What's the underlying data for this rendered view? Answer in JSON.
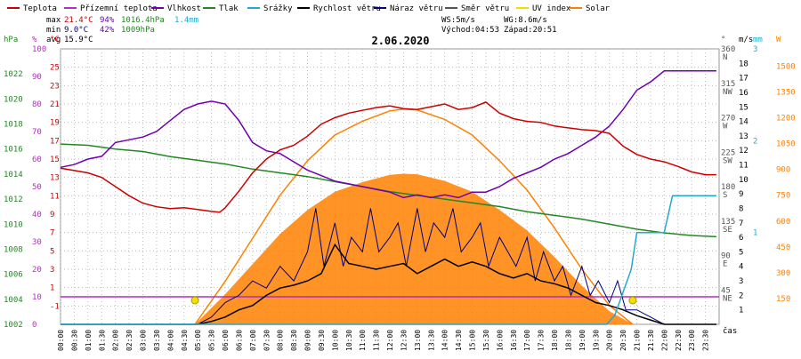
{
  "legend": [
    {
      "label": "Teplota",
      "color": "#cc0000"
    },
    {
      "label": "Přízemní teplota",
      "color": "#b030c0"
    },
    {
      "label": "Vlhkost",
      "color": "#7000b0"
    },
    {
      "label": "Tlak",
      "color": "#228822"
    },
    {
      "label": "Srážky",
      "color": "#22aacc"
    },
    {
      "label": "Rychlost větru",
      "color": "#000000"
    },
    {
      "label": "Náraz větru",
      "color": "#000080"
    },
    {
      "label": "Směr větru",
      "color": "#555555"
    },
    {
      "label": "UV index",
      "color": "#f0e000"
    },
    {
      "label": "Solar",
      "color": "#ff8000"
    }
  ],
  "stats": {
    "max_label": "max",
    "max_temp": "21.4°C",
    "max_hum": "94%",
    "max_press": "1016.4hPa",
    "max_rain": "1.4mm",
    "min_label": "min",
    "min_temp": "9.0°C",
    "min_hum": "42%",
    "min_press": "1009hPa",
    "avg_label": "avg",
    "avg_temp": "15.9°C"
  },
  "wind_info": {
    "ws": "WS:5m/s",
    "wg": "WG:8.6m/s",
    "sunrise": "Východ:04:53",
    "sunset": "Západ:20:51"
  },
  "title": "2.06.2020",
  "chart_data": {
    "type": "line",
    "title": "2.06.2020",
    "x_ticks": [
      "00:00",
      "00:30",
      "01:00",
      "01:30",
      "02:00",
      "02:30",
      "03:00",
      "03:30",
      "04:00",
      "04:30",
      "05:00",
      "05:30",
      "06:00",
      "06:30",
      "07:00",
      "07:30",
      "08:00",
      "08:30",
      "09:00",
      "09:30",
      "10:00",
      "10:30",
      "11:00",
      "11:30",
      "12:00",
      "12:30",
      "13:00",
      "13:30",
      "14:00",
      "14:30",
      "15:00",
      "15:30",
      "16:00",
      "16:30",
      "17:00",
      "17:30",
      "18:00",
      "18:30",
      "19:00",
      "19:30",
      "20:00",
      "20:30",
      "21:00",
      "21:30",
      "22:00",
      "22:30",
      "23:00",
      "23:30"
    ],
    "xlabel": "čas",
    "axes": {
      "hpa": {
        "unit": "hPa",
        "ticks": [
          "1022",
          "1020",
          "1018",
          "1016",
          "1014",
          "1012",
          "1010",
          "1008",
          "1006",
          "1004",
          "1002"
        ],
        "range": [
          1002,
          1024
        ]
      },
      "pct": {
        "unit": "%",
        "ticks": [
          "100",
          "90",
          "80",
          "70",
          "60",
          "50",
          "40",
          "30",
          "20",
          "10",
          "0"
        ],
        "range": [
          0,
          100
        ]
      },
      "temp": {
        "unit": "°C",
        "ticks": [
          "25",
          "23",
          "21",
          "19",
          "17",
          "15",
          "13",
          "11",
          "9",
          "7",
          "5",
          "3",
          "1",
          "-1"
        ],
        "range": [
          -3,
          27
        ]
      },
      "dir": {
        "unit": "°",
        "ticks": [
          "360",
          "315",
          "270",
          "225",
          "180",
          "135",
          "90",
          "45"
        ],
        "labels": [
          "N",
          "NW",
          "W",
          "SW",
          "S",
          "SE",
          "E",
          "NE"
        ],
        "range": [
          0,
          360
        ]
      },
      "ms": {
        "unit": "m/s",
        "ticks": [
          "18",
          "17",
          "16",
          "15",
          "14",
          "13",
          "12",
          "11",
          "10",
          "9",
          "8",
          "7",
          "6",
          "5",
          "4",
          "3",
          "2",
          "1"
        ],
        "range": [
          0,
          19
        ]
      },
      "mm": {
        "unit": "mm",
        "ticks": [
          "3",
          "2",
          "1"
        ],
        "range": [
          0,
          3
        ]
      },
      "w": {
        "unit": "W",
        "ticks": [
          "1500",
          "1350",
          "1200",
          "1050",
          "900",
          "750",
          "600",
          "450",
          "300",
          "150"
        ],
        "range": [
          0,
          1600
        ]
      }
    },
    "series": [
      {
        "name": "Teplota",
        "axis": "temp",
        "color": "#cc0000",
        "x": [
          0,
          1,
          1.5,
          2,
          2.5,
          3,
          3.5,
          4,
          4.5,
          5,
          5.5,
          5.8,
          6,
          6.5,
          7,
          7.5,
          8,
          8.5,
          9,
          9.5,
          10,
          10.5,
          11,
          11.5,
          12,
          12.5,
          13,
          13.5,
          14,
          14.5,
          15,
          15.5,
          16,
          16.5,
          17,
          17.5,
          18,
          18.5,
          19,
          19.5,
          20,
          20.5,
          21,
          21.5,
          22,
          22.5,
          23,
          23.5,
          23.9
        ],
        "y": [
          14,
          13.5,
          13,
          12,
          11,
          10.2,
          9.8,
          9.6,
          9.7,
          9.5,
          9.3,
          9.2,
          9.7,
          11.5,
          13.5,
          15,
          16,
          16.5,
          17.5,
          18.8,
          19.5,
          20,
          20.3,
          20.6,
          20.8,
          20.5,
          20.4,
          20.7,
          21,
          20.4,
          20.6,
          21.2,
          20,
          19.4,
          19.1,
          19,
          18.6,
          18.4,
          18.2,
          18.1,
          17.8,
          16.4,
          15.5,
          15,
          14.7,
          14.2,
          13.6,
          13.3,
          13.3
        ]
      },
      {
        "name": "Vlhkost",
        "axis": "pct",
        "color": "#7000b0",
        "x": [
          0,
          0.5,
          1,
          1.5,
          2,
          2.5,
          3,
          3.5,
          4,
          4.5,
          5,
          5.5,
          6,
          6.5,
          7,
          7.5,
          8,
          8.5,
          9,
          9.5,
          10,
          10.5,
          11,
          11.5,
          12,
          12.5,
          13,
          13.5,
          14,
          14.5,
          15,
          15.5,
          16,
          16.5,
          17,
          17.5,
          18,
          18.5,
          19,
          19.5,
          20,
          20.5,
          21,
          21.5,
          22,
          22.5,
          23,
          23.9
        ],
        "y": [
          57,
          58,
          60,
          61,
          66,
          67,
          68,
          70,
          74,
          78,
          80,
          81,
          80,
          74,
          66,
          63,
          62,
          59,
          56,
          54,
          52,
          51,
          50,
          49,
          48,
          46,
          47,
          46,
          47,
          46,
          48,
          48,
          50,
          53,
          55,
          57,
          60,
          62,
          65,
          68,
          72,
          78,
          85,
          88,
          92,
          92,
          92,
          92
        ]
      },
      {
        "name": "Tlak",
        "axis": "hpa",
        "color": "#228822",
        "x": [
          0,
          1,
          2,
          3,
          4,
          5,
          6,
          7,
          8,
          9,
          10,
          11,
          12,
          13,
          14,
          15,
          16,
          17,
          18,
          19,
          20,
          21,
          22,
          23,
          23.9
        ],
        "y": [
          1016.4,
          1016.3,
          1016.0,
          1015.8,
          1015.4,
          1015.1,
          1014.8,
          1014.4,
          1014.1,
          1013.8,
          1013.4,
          1013.0,
          1012.6,
          1012.3,
          1012.0,
          1011.7,
          1011.4,
          1011.0,
          1010.7,
          1010.4,
          1010.0,
          1009.6,
          1009.3,
          1009.1,
          1009.0
        ]
      },
      {
        "name": "Srážky",
        "axis": "mm",
        "color": "#22aacc",
        "x": [
          0,
          19.9,
          20.2,
          20.5,
          20.8,
          21,
          21.5,
          22,
          22.3,
          22.6,
          23,
          23.9
        ],
        "y": [
          0,
          0,
          0.1,
          0.35,
          0.6,
          1.0,
          1.0,
          1.0,
          1.4,
          1.4,
          1.4,
          1.4
        ]
      },
      {
        "name": "Rychlost větru",
        "axis": "ms",
        "color": "#000000",
        "x": [
          0,
          5,
          5.5,
          6,
          6.5,
          7,
          7.5,
          8,
          8.5,
          9,
          9.5,
          10,
          10.5,
          11,
          11.5,
          12,
          12.5,
          13,
          13.5,
          14,
          14.5,
          15,
          15.5,
          16,
          16.5,
          17,
          17.5,
          18,
          18.5,
          19,
          19.5,
          20,
          20.5,
          21,
          21.5,
          22,
          23.9
        ],
        "y": [
          0,
          0,
          0.2,
          0.5,
          1,
          1.3,
          2,
          2.5,
          2.7,
          3,
          3.5,
          5.5,
          4.2,
          4,
          3.8,
          4,
          4.2,
          3.5,
          4,
          4.5,
          4,
          4.3,
          4,
          3.5,
          3.2,
          3.5,
          3,
          2.8,
          2.5,
          2,
          1.5,
          1.3,
          1,
          0.6,
          0.3,
          0,
          0
        ]
      },
      {
        "name": "Náraz větru",
        "axis": "ms",
        "color": "#000080",
        "x": [
          0,
          5,
          5.5,
          6,
          6.5,
          7,
          7.5,
          8,
          8.5,
          9,
          9.3,
          9.6,
          10,
          10.3,
          10.6,
          11,
          11.3,
          11.6,
          12,
          12.3,
          12.6,
          13,
          13.3,
          13.6,
          14,
          14.3,
          14.6,
          15,
          15.3,
          15.6,
          16,
          16.3,
          16.6,
          17,
          17.3,
          17.6,
          18,
          18.3,
          18.6,
          19,
          19.3,
          19.6,
          20,
          20.3,
          20.6,
          21,
          21.5,
          22,
          23.9
        ],
        "y": [
          0,
          0,
          0.5,
          1.5,
          2,
          3,
          2.5,
          4,
          3,
          5,
          8,
          4,
          7,
          4,
          6,
          5,
          8,
          5,
          6,
          7,
          4,
          8,
          5,
          7,
          6,
          8,
          5,
          6,
          7,
          4,
          6,
          5,
          4,
          6,
          3,
          5,
          3,
          4,
          2,
          4,
          2,
          3,
          1.5,
          3,
          1,
          1,
          0.5,
          0,
          0
        ]
      },
      {
        "name": "Solar",
        "axis": "w",
        "color": "#ff8000",
        "x": [
          4.9,
          6,
          7,
          8,
          9,
          10,
          11,
          12,
          12.5,
          13,
          14,
          15,
          16,
          17,
          18,
          19,
          20,
          20.85
        ],
        "y": [
          0,
          250,
          500,
          750,
          950,
          1100,
          1180,
          1240,
          1250,
          1245,
          1190,
          1100,
          950,
          780,
          560,
          320,
          110,
          0
        ]
      }
    ]
  }
}
